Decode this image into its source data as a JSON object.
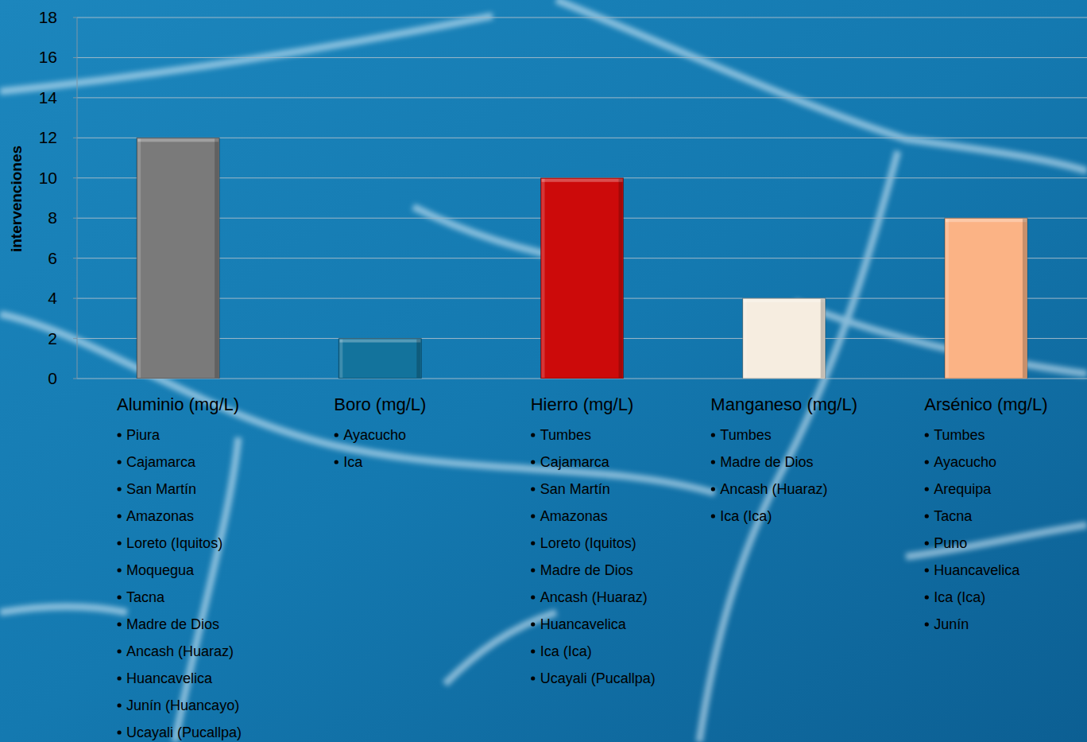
{
  "chart_data": {
    "type": "bar",
    "y_label": "intervenciones",
    "categories": [
      "Aluminio (mg/L)",
      "Boro (mg/L)",
      "Hierro (mg/L)",
      "Manganeso (mg/L)",
      "Arsénico (mg/L)"
    ],
    "values": [
      12,
      2,
      10,
      4,
      8
    ],
    "colors": [
      "#7a7a7a",
      "#13739c",
      "#cc0a0a",
      "#f6ede0",
      "#fbb385"
    ],
    "ylim": [
      0,
      18
    ],
    "yticks": [
      0,
      2,
      4,
      6,
      8,
      10,
      12,
      14,
      16,
      18
    ],
    "grid": true,
    "annotations": [
      [
        "Piura",
        "Cajamarca",
        "San Martín",
        "Amazonas",
        "Loreto (Iquitos)",
        "Moquegua",
        "Tacna",
        "Madre de Dios",
        "Ancash (Huaraz)",
        "Huancavelica",
        "Junín (Huancayo)",
        "Ucayali (Pucallpa)"
      ],
      [
        "Ayacucho",
        "Ica"
      ],
      [
        "Tumbes",
        "Cajamarca",
        "San Martín",
        "Amazonas",
        "Loreto (Iquitos)",
        "Madre de Dios",
        "Ancash (Huaraz)",
        "Huancavelica",
        "Ica (Ica)",
        "Ucayali (Pucallpa)"
      ],
      [
        "Tumbes",
        "Madre de Dios",
        "Ancash (Huaraz)",
        "Ica (Ica)"
      ],
      [
        "Tumbes",
        "Ayacucho",
        "Arequipa",
        "Tacna",
        "Puno",
        "Huancavelica",
        "Ica (Ica)",
        "Junín"
      ]
    ]
  }
}
